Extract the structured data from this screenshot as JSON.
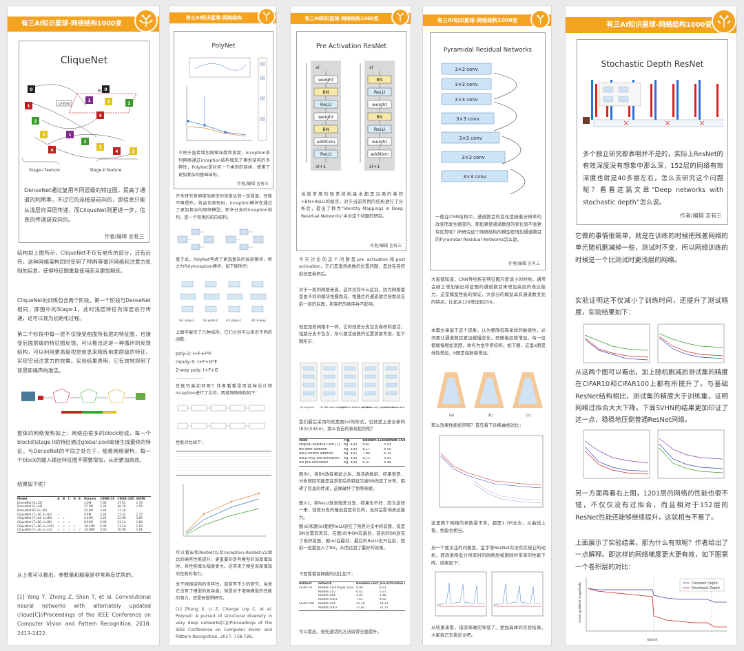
{
  "colors": {
    "accent": "#f4a31f",
    "border": "#9a9a9a"
  },
  "col1": {
    "banner": "有三AI知识星球-网络结构1000变",
    "card_title": "CliqueNet",
    "fig_block": "Block",
    "fig_unfold": "unfold",
    "fig_stage1": "Stage-I feature",
    "fig_stage2": "Stage-II feature",
    "card_text": "DenseNet通过复用不同层级的特征图，提高了通道的利用率，不过它的连接是前向的，即信息只能从浅层向深层传递，而CliqueNet则更进一步，信息的传递是双向的。",
    "author": "作者/编辑 言有三",
    "p1": "结构如上图所示，CliqueNet不仅有前传的部分，还有后传，这种网络架构同时受到了RNN等循环网络和注意力机制的启发，使得特征图重复使用而且更加精炼。",
    "p2": "CliqueNet的训练包含两个阶段。第一个阶段与DenseNet相同，即图中的Stage-1，此时浅层特征向深层进行传递，这可以视为初始化过程。",
    "p3": "第二个阶段中每一层不仅接受前面所有层的特征图，也接受后面层级的特征图反馈。可以看出这是一种循环的反馈结构，可以利用更高级视觉信息来精炼前面层级的特征，实现空间注意力的效果。实验结果表明，它有效地抑制了背景和噪声的激活。",
    "p4": "整体的网络架构如上：网络由很多的block组成，每一个block的stage II的特征通过global pool串接生成最终的特征。与DenseNet的不同之处在于，随着网络架构，每一个block的输入输出特征图不需要增加，从而更加高效。",
    "p5": "结果如下呢？",
    "p6": "从上表可以看出，参数量和精度是非常具有优势的。",
    "ref": "[1] Yang Y, Zhong Z, Shen T, et al. Convolutional neural networks with alternately updated clique[C]//Proceedings of the IEEE Conference on Computer Vision and Pattern Recognition. 2018: 2413-2422.",
    "table": {
      "header": [
        "Model",
        "A",
        "B",
        "C",
        "D",
        "E",
        "Params",
        "CIFAR-10",
        "CIFAR-100",
        "SVHN"
      ],
      "rows": [
        [
          "DenseNet (k=12)",
          "",
          "",
          "",
          "",
          "",
          "1.0M",
          "7.00",
          "27.55",
          "1.79"
        ],
        [
          "DenseNet (k=24)",
          "",
          "",
          "",
          "",
          "",
          "27.2M",
          "5.24",
          "20.20",
          "1.59"
        ],
        [
          "DenseNet-BC (k=40)",
          "",
          "",
          "",
          "",
          "",
          "25.6M",
          "3.46",
          "17.18",
          "-"
        ],
        [
          "CliqueNet (T=36, k=64)",
          "✓",
          "",
          "",
          "",
          "",
          "0.9M",
          "5.93",
          "27.32",
          "1.77"
        ],
        [
          "CliqueNet (T=64, k=80)",
          "✓",
          "✓",
          "",
          "",
          "",
          "4.49M",
          "5.25",
          "22.96",
          "1.69"
        ],
        [
          "CliqueNet (T=80, k=80)",
          "✓",
          "✓",
          "✓",
          "",
          "",
          "6.94M",
          "5.06",
          "23.14",
          "1.68"
        ],
        [
          "CliqueNet (T=80, k=150)",
          "✓",
          "✓",
          "✓",
          "✓",
          "",
          "10.14M",
          "5.06",
          "23.14",
          "1.58"
        ],
        [
          "CliqueNet (T=30, k=15)",
          "✓",
          "✓",
          "✓",
          "✓",
          "✓",
          "10.48M",
          "5.60",
          "20.06",
          "1.64"
        ]
      ]
    }
  },
  "col2": {
    "banner": "有三AI知识星球-网络结构",
    "card_title": "PolyNet",
    "card_text": "不同于直接增加网络深度和宽度，Inception系列网络通过inception结构增加了模型结构的多样性，PolyNet是对另一个类别的延续，使用了更加复杂的基础结构。",
    "author": "作者/编辑 言有三",
    "p1": "许多研究表明增加更深的深度达到一定阈值，性能不再提升，效益也表现出，Inception模块在通过了更加复杂的网络模型，即多分支的inception结构，是一个常用的前向结构。",
    "p2": "基于此，PolyNet考虑了更加复杂的局部模块，称之为PolyInception模块，如下图所示：",
    "fig_labels": [
      "(a) poly-2",
      "(b) poly-2",
      "(c) poly-2",
      "(d) 2-way"
    ],
    "p3": "上图中展示了几种结构，它们分别可以表示不同的函数：",
    "f1": "poly-2: I+F+F*F",
    "f2": "mpoly-3: I+F+G*F",
    "f3": "2-way poly: I+F+G",
    "p4": "性能究竟如何呢？作者看看是否这种设计和Inception进行了比较，两者网络结构如下：",
    "p5": "性能对比如下：",
    "p6": "可以看出和ResNet以及Inception-ResNet-V2相比的确有性能提升，更重要的是有模型的深度增加时，其性能增长幅度更大。这带来了模型深度增加后性能的潜力。",
    "p7": "关于网络结构的多样性，目前有不少的研究，虽然它没有了模型的复杂度，但是对于增强模型的性能的潜力，还是很值得研究。",
    "ref": "[1] Zhang X, Li Z, Change Loy C, et al. Polynet: A pursuit of structural diversity in very deep networks[C]//Proceedings of the IEEE Conference on Computer Vision and Pattern Recognition. 2017: 718-726."
  },
  "col3": {
    "banner": "有三AI知识星球-网络结构1000变",
    "card_title": "Pre Activation ResNet",
    "left_stack": [
      "xl",
      "weight",
      "BN",
      "ReLU",
      "weight",
      "BN",
      "addition",
      "ReLU",
      "xl+1"
    ],
    "right_stack": [
      "xl",
      "BN",
      "ReLU",
      "weight",
      "BN",
      "ReLU",
      "weight",
      "addition",
      "xl+1"
    ],
    "card_text": "当前常用的残差结构基本都是沿用的卷积+BN+ReLU的顺序，对于当前常用的结构进行了分析后，提出了称为“Identity Mappings in Deep Residual Networks”中对这个问题的研究。",
    "author": "作者/编辑 言有三",
    "p1": "今天讨论的这个问题是pre activation和post activation，它们是激活函数的位置问题，是放在卷积前还是卷积后。",
    "p2": "对于一般的网络来说，这并没有什么区别，因为网络都是由不同的模块堆叠而成，堆叠后的通道激活函数就在前一层的后面，和卷积的顺序并不影响。",
    "p3": "但是残差网络不一样，它的残差分支包含卷积和激活，短路分支不包含，所以激活函数的位置需要考虑，如下图所示：",
    "fig_labels": [
      "(a) original",
      "(b) BN after addition",
      "(c) ReLU before addition",
      "(d) ReLU-only pre-activation",
      "(e) full pre-activation"
    ],
    "p4": "我们最后采用的就是图(e)的形式，也就是上述全新的(b)(c)(d)(e)，那么各自的表现如何呢？",
    "table": {
      "header": [
        "case",
        "Fig.",
        "ResNet-110",
        "ResNet-164"
      ],
      "rows": [
        [
          "original Residual Unit [1]",
          "Fig. 4(a)",
          "6.61",
          "5.93"
        ],
        [
          "BN after addition",
          "Fig. 4(b)",
          "8.17",
          "6.50"
        ],
        [
          "ReLU before addition",
          "Fig. 4(c)",
          "7.84",
          "6.14"
        ],
        [
          "ReLU-only pre-activation",
          "Fig. 4(d)",
          "6.71",
          "5.91"
        ],
        [
          "full pre-activation",
          "Fig. 4(e)",
          "6.37",
          "5.46"
        ]
      ]
    },
    "p5": "图(b)，将BN放在相加之后，激活函数前，结果很差，分析原因可能是在求和后的特征又被BN改变了分布，阻碍了信息的传递，这样破坏了恒等映射。",
    "p6": "图(c)，将ReLU放到残差分支，结果也不好，因为这样一来，残差分支的输出都是非负的，当然会影响表达能力。",
    "p7": "图(d)和图(e)都把ReLU放在了残差分支中的前面，但是BN位置有差异，在图(d)中BN在最后，前后的BN放在了卷积前面，图(e)在最前，最后的ReLU也只在前，而前一层都加入了BN，从而达到了最好的效果。",
    "p8": "下面看看各网络的对比如下：",
    "table2": {
      "header": [
        "dataset",
        "network",
        "baseline unit",
        "pre-activation unit"
      ],
      "rows": [
        [
          "CIFAR-10",
          "ResNet-110(1layer skip)",
          "9.90",
          "8.91"
        ],
        [
          "",
          "ResNet-110",
          "6.61",
          "6.37"
        ],
        [
          "",
          "ResNet-164",
          "5.93",
          "5.46"
        ],
        [
          "",
          "ResNet-1001",
          "7.61",
          "4.92"
        ],
        [
          "CIFAR-100",
          "ResNet-164",
          "25.16",
          "24.33"
        ],
        [
          "",
          "ResNet-1001",
          "27.82",
          "22.71"
        ]
      ]
    },
    "p9": "可以看出，预先激活的方法取得全面提升。"
  },
  "col4": {
    "banner": "有三AI知识星球-网络结构1000变",
    "card_title": "Pyramidal Residual Networks",
    "conv_label": "3×3 conv",
    "card_text": "一般在CNN结构中，通道数目的变化是随着分辨率的改变而发生跳变的，那如果使通道数目的变化就不会更有优势呢？所研究这个网络结构的模型是增加通道数目的Pyramidal Residual Networks怎么说。",
    "author": "作者/编辑 言有三",
    "p1": "大家都知道，CNN等结构在特征图尺度减小的时候，通常会随之增加输出特征图的通道数目来增加高层的表达能力，这是模型性能的保证，大部分的模型具有通道数变化的特点，比如从128增加到256。",
    "p2": "本篇文章基于这个现象，认为要降低降采样的敏感性，必须要让通道数目更加缓慢变化。即随着层数增加，每一层都缓慢增加宽度，命名为金字塔结构，如下图，这里a图是线性增加，b图是指数级增加。",
    "fig_labels": [
      "(a)",
      "(b)",
      "(c)"
    ],
    "p3": "那么效果性能如何呢？首先看下训练曲线对比：",
    "p4": "这里两个网络的参数量不多，都是1.7M左右，从曲线上看，性能也相当。",
    "p5": "另一个要关注的问题是，金字塔ResNet有没有实现它的动机，即改善降低分辨率时的网络层被删除时带来的性能下降，结果如下：",
    "p6": "从结果来看，错误率确实降低了。更加具体的实验结果，大家自己去看论文吧。"
  },
  "col5": {
    "banner": "有三AI知识星球-网络结构1000变",
    "card_title": "Stochastic Depth ResNet",
    "card_text": "多个独立研究都表明并不是的，实际上ResNet的有效深度没有想象中那么深，152层的网络有效深度也就是40多层左右，怎么去研究这个问题呢？看看这篇文章“Deep networks with stochastic depth”怎么说。",
    "author": "作者/编辑 言有三",
    "p1": "它做的事情很简单，就是在训练的时候把残差网络的单元随机删减掉一些，测试时不变，所以网络训练的时候是一个比测试时更浅层的网络。",
    "p2": "实验证明这不仅减小了训练时间，还提升了测试精度，实验结果如下：",
    "p3": "从这两个图可以看出，加上随机删减后测试集的精度在CIFAR10和CIFAR100上都有所提升了。与基础ResNet结构相比，测试集的精度大于训练集，证明网络过拟合大大下降。下面SVHN的结果更加印证了这一点，稳稳地压倒普通ResNet网络。",
    "p4": "另一方面再看右上图，1201层的网络的性能也很不错，不仅仅没有过拟合，而且相对于152层的ResNet性能还能够继续提升，这就相当不易了。",
    "p5": "上面展示了实验结果，那为什么有效呢？作者给出了一点解释。即这样的网络梯度更大更有效，如下图第一个卷积层的对比：",
    "legend": [
      "Constant Depth",
      "Stochastic Depth"
    ],
    "xlabel": "epoch",
    "ylabel": "mean gradient magnitude"
  }
}
